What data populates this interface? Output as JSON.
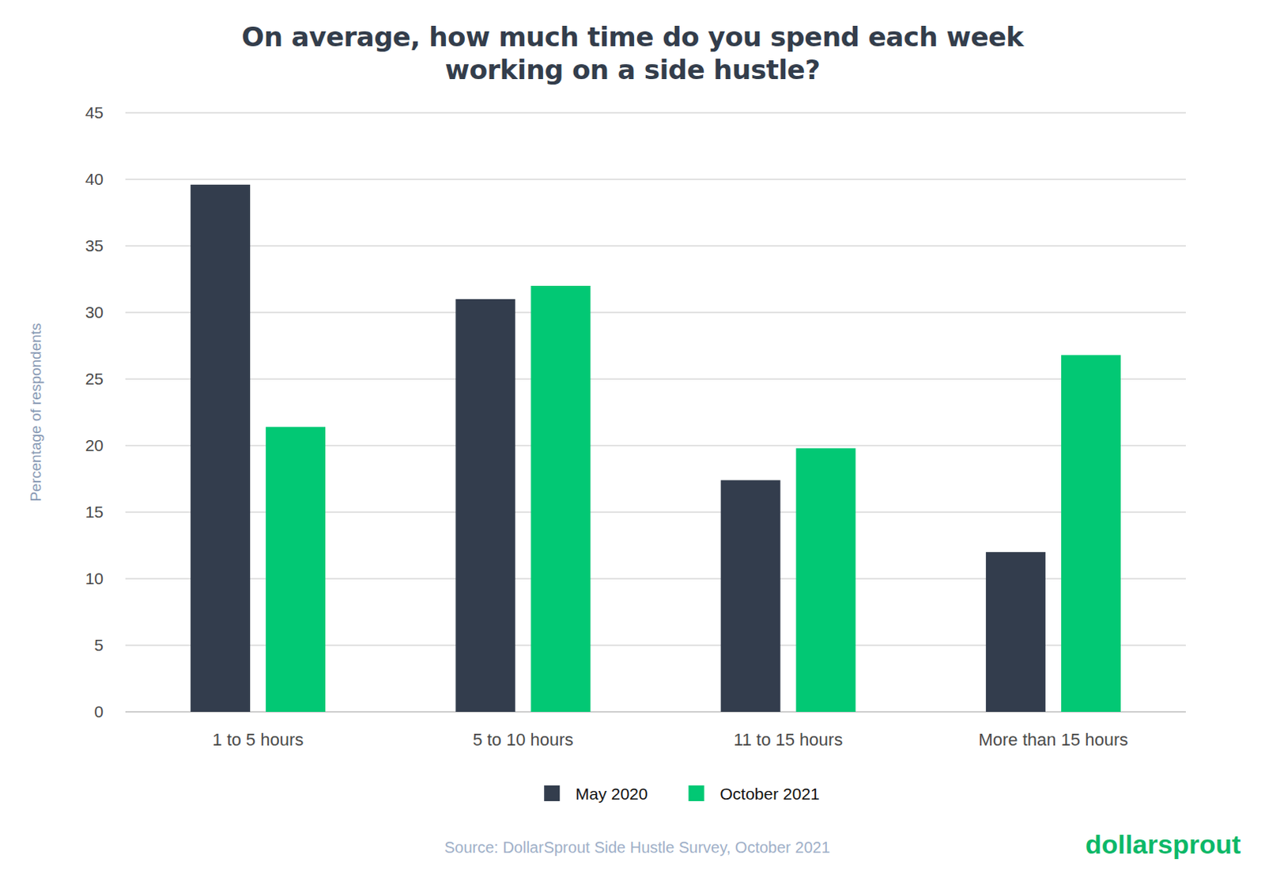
{
  "chart_data": {
    "type": "bar",
    "title": "On average, how much time do you spend each week working on a side hustle?",
    "y_label": "Percentage of respondents",
    "categories": [
      "1 to 5 hours",
      "5 to 10 hours",
      "11 to 15 hours",
      "More than 15 hours"
    ],
    "series": [
      {
        "name": "May 2020",
        "color": "#333d4d",
        "values": [
          39.6,
          31,
          17.4,
          12
        ]
      },
      {
        "name": "October 2021",
        "color": "#02c874",
        "values": [
          21.4,
          32,
          19.8,
          26.8
        ]
      }
    ],
    "ylim": [
      0,
      45
    ],
    "yticks": [
      0,
      5,
      10,
      15,
      20,
      25,
      30,
      35,
      40,
      45
    ],
    "grid": true,
    "legend": "bottom",
    "source": "Source: DollarSprout Side Hustle Survey, October 2021",
    "brand": "dollarsprout"
  }
}
